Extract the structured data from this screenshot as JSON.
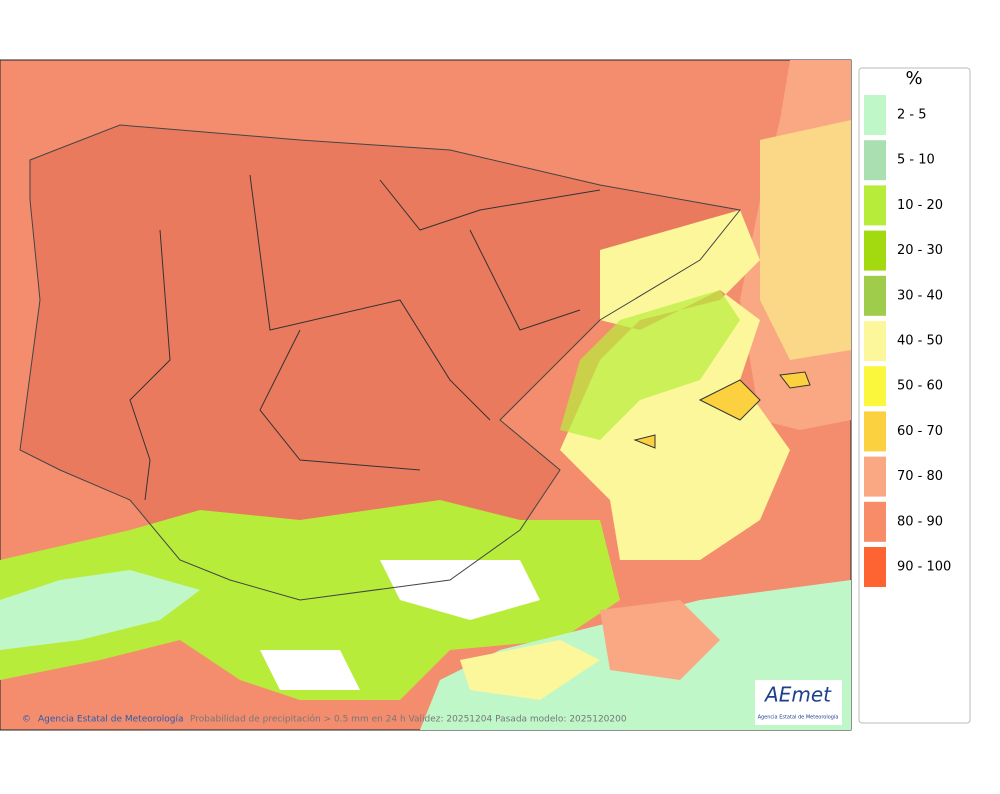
{
  "legend": {
    "title": "%",
    "items": [
      {
        "label": "2 - 5",
        "color": "#bff7c9"
      },
      {
        "label": "5 - 10",
        "color": "#a9dfb1"
      },
      {
        "label": "10 - 20",
        "color": "#b8ec3a"
      },
      {
        "label": "20 - 30",
        "color": "#a3d90f"
      },
      {
        "label": "30 - 40",
        "color": "#9fcc4a"
      },
      {
        "label": "40 - 50",
        "color": "#fbf79a"
      },
      {
        "label": "50 - 60",
        "color": "#fbf73c"
      },
      {
        "label": "60 - 70",
        "color": "#fbd13f"
      },
      {
        "label": "70 - 80",
        "color": "#f9a883"
      },
      {
        "label": "80 - 90",
        "color": "#f98c68"
      },
      {
        "label": "90 - 100",
        "color": "#fd6432"
      }
    ]
  },
  "footer": {
    "credit": "Agencia Estatal de Meteorología",
    "caption": "Probabilidad de precipitación > 0.5 mm en 24 h Validez: 20251204 Pasada modelo: 2025120200"
  },
  "logo": {
    "name": "AEmet",
    "subtitle": "Agencia Estatal de Meteorología"
  }
}
